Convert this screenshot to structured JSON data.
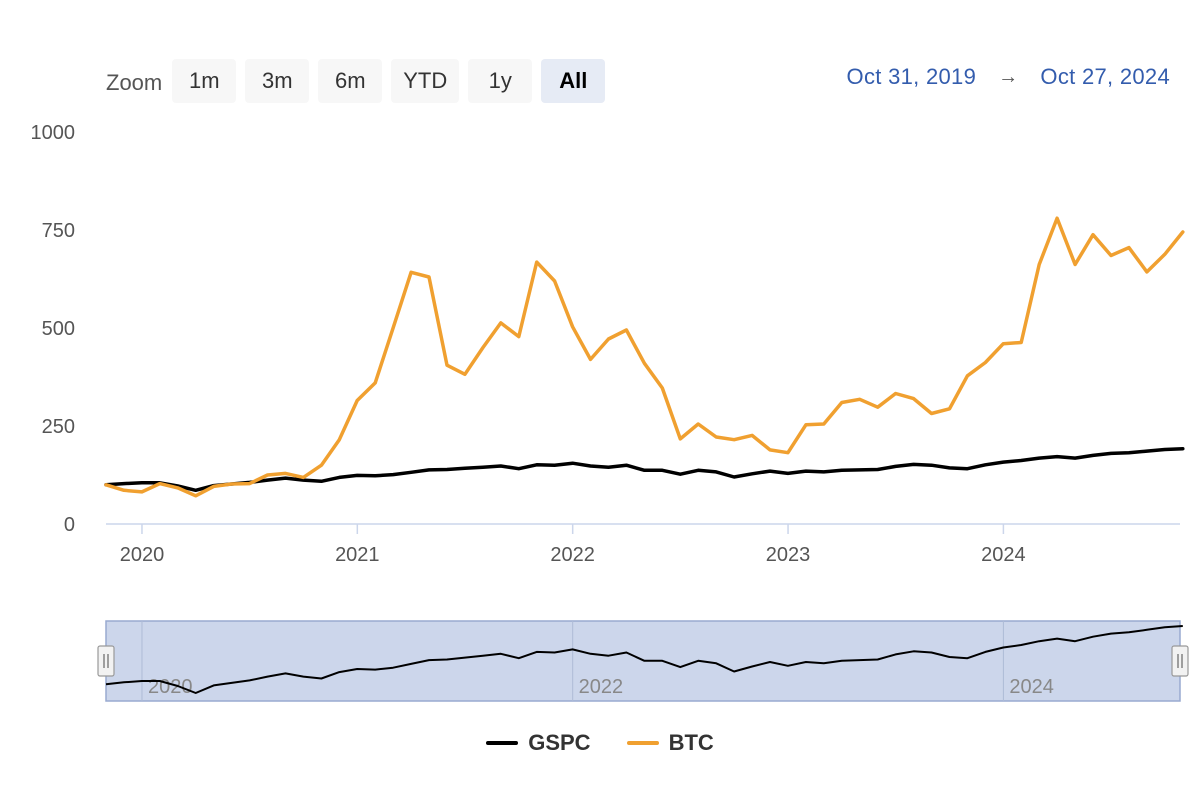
{
  "zoom": {
    "label": "Zoom",
    "buttons": [
      "1m",
      "3m",
      "6m",
      "YTD",
      "1y",
      "All"
    ],
    "active": "All"
  },
  "range": {
    "from": "Oct 31, 2019",
    "to": "Oct 27, 2024",
    "arrow": "→"
  },
  "colors": {
    "gspc": "#000000",
    "btc": "#f0a030",
    "navigator_fill": "#ccd6eb",
    "navigator_border": "#99aad0",
    "axis": "#ccd6eb"
  },
  "chart_data": {
    "type": "line",
    "title": "",
    "xlabel": "",
    "ylabel": "",
    "ylim": [
      0,
      1000
    ],
    "yticks": [
      0,
      250,
      500,
      750,
      1000
    ],
    "x_start": 2019.833,
    "x_end": 2024.82,
    "x_step": 0.08333,
    "xticks": [
      {
        "value": 2020,
        "label": "2020"
      },
      {
        "value": 2021,
        "label": "2021"
      },
      {
        "value": 2022,
        "label": "2022"
      },
      {
        "value": 2023,
        "label": "2023"
      },
      {
        "value": 2024,
        "label": "2024"
      }
    ],
    "series": [
      {
        "name": "GSPC",
        "color": "#000000",
        "values": [
          100,
          103,
          105,
          105,
          97,
          86,
          98,
          102,
          106,
          112,
          117,
          112,
          109,
          119,
          124,
          123,
          126,
          132,
          138,
          139,
          142,
          145,
          148,
          141,
          151,
          150,
          155,
          148,
          145,
          150,
          137,
          137,
          127,
          137,
          133,
          120,
          128,
          135,
          129,
          135,
          133,
          137,
          138,
          139,
          147,
          152,
          150,
          143,
          141,
          151,
          158,
          162,
          168,
          172,
          168,
          175,
          180,
          182,
          186,
          190,
          192
        ]
      },
      {
        "name": "BTC",
        "color": "#f0a030",
        "values": [
          100,
          86,
          82,
          103,
          92,
          72,
          96,
          102,
          103,
          125,
          129,
          119,
          150,
          215,
          315,
          360,
          500,
          642,
          630,
          405,
          382,
          450,
          513,
          478,
          668,
          620,
          503,
          420,
          472,
          495,
          410,
          347,
          217,
          255,
          222,
          215,
          226,
          189,
          182,
          253,
          255,
          310,
          318,
          298,
          333,
          320,
          282,
          294,
          378,
          412,
          460,
          463,
          662,
          780,
          662,
          738,
          685,
          705,
          643,
          688,
          745
        ]
      }
    ],
    "navigator": {
      "series": "GSPC",
      "xticks": [
        {
          "value": 2020,
          "label": "2020"
        },
        {
          "value": 2022,
          "label": "2022"
        },
        {
          "value": 2024,
          "label": "2024"
        }
      ]
    },
    "legend": [
      "GSPC",
      "BTC"
    ]
  }
}
